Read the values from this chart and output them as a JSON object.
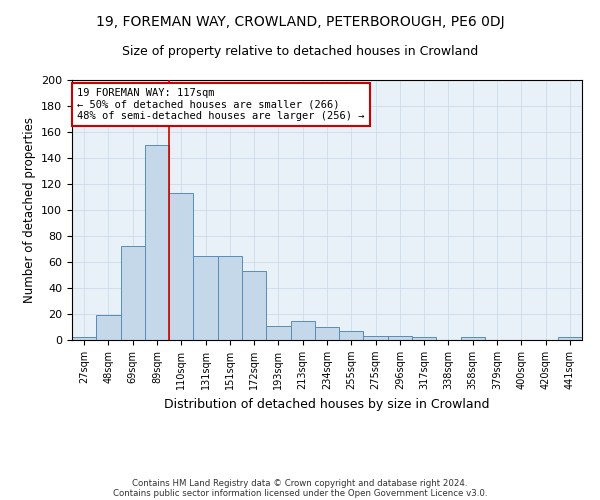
{
  "title1": "19, FOREMAN WAY, CROWLAND, PETERBOROUGH, PE6 0DJ",
  "title2": "Size of property relative to detached houses in Crowland",
  "xlabel": "Distribution of detached houses by size in Crowland",
  "ylabel": "Number of detached properties",
  "categories": [
    "27sqm",
    "48sqm",
    "69sqm",
    "89sqm",
    "110sqm",
    "131sqm",
    "151sqm",
    "172sqm",
    "193sqm",
    "213sqm",
    "234sqm",
    "255sqm",
    "275sqm",
    "296sqm",
    "317sqm",
    "338sqm",
    "358sqm",
    "379sqm",
    "400sqm",
    "420sqm",
    "441sqm"
  ],
  "values": [
    2,
    19,
    72,
    150,
    113,
    65,
    65,
    53,
    11,
    15,
    10,
    7,
    3,
    3,
    2,
    0,
    2,
    0,
    0,
    0,
    2
  ],
  "bar_color": "#c5d8ea",
  "bar_edge_color": "#5a8db5",
  "annotation_line1": "19 FOREMAN WAY: 117sqm",
  "annotation_line2": "← 50% of detached houses are smaller (266)",
  "annotation_line3": "48% of semi-detached houses are larger (256) →",
  "annotation_box_color": "#ffffff",
  "annotation_box_edge_color": "#cc0000",
  "redline_x": 4,
  "ylim": [
    0,
    200
  ],
  "yticks": [
    0,
    20,
    40,
    60,
    80,
    100,
    120,
    140,
    160,
    180,
    200
  ],
  "grid_color": "#c8d8e8",
  "bg_color": "#e8f0f8",
  "footer1": "Contains HM Land Registry data © Crown copyright and database right 2024.",
  "footer2": "Contains public sector information licensed under the Open Government Licence v3.0.",
  "title1_fontsize": 10,
  "title2_fontsize": 9,
  "xlabel_fontsize": 9,
  "ylabel_fontsize": 8.5
}
